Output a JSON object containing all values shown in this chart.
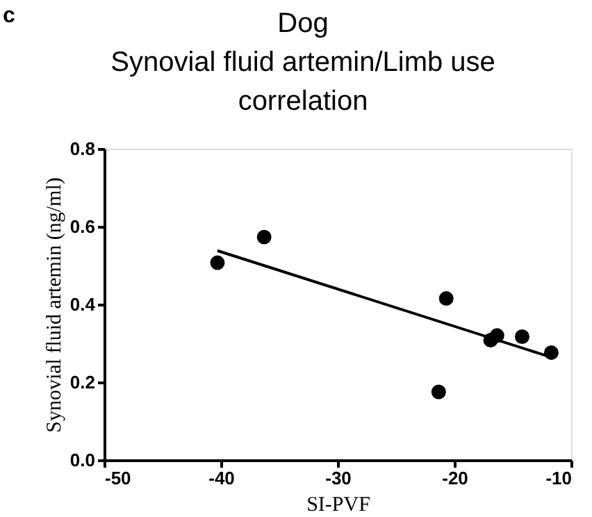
{
  "chart_data": {
    "type": "scatter",
    "title": "Dog",
    "subtitle": "Synovial fluid artemin/Limb use correlation",
    "xlabel": "SI-PVF",
    "ylabel": "Synovial fluid artemin (ng/ml)",
    "annotations": [
      "c"
    ],
    "x": [
      -40.3,
      -36.3,
      -20.7,
      -21.35,
      -16.9,
      -16.35,
      -14.2,
      -11.7
    ],
    "series": [
      {
        "color": "#000000",
        "marker": "circle",
        "values": [
          0.507,
          0.573,
          0.415,
          0.175,
          0.308,
          0.32,
          0.317,
          0.276
        ]
      },
      {
        "type": "line",
        "color": "#000000",
        "line_style": "solid",
        "x": [
          -40.3,
          -11.7
        ],
        "values": [
          0.538,
          0.264
        ]
      }
    ],
    "xlim": [
      -50,
      -10
    ],
    "xticks": [
      -50,
      -40,
      -30,
      -20,
      -10
    ],
    "ylim": [
      0,
      0.8
    ],
    "yticks": [
      {
        "value": 0,
        "label": "0.0"
      },
      {
        "value": 0.2,
        "label": "0.2"
      },
      {
        "value": 0.4,
        "label": "0.4"
      },
      {
        "value": 0.6,
        "label": "0.6"
      },
      {
        "value": 0.8,
        "label": "0.8"
      }
    ],
    "grid": false
  }
}
